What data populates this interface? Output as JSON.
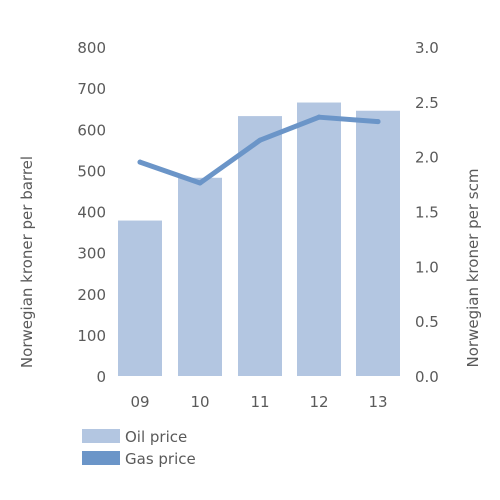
{
  "chart_data": {
    "type": "bar",
    "categories": [
      "09",
      "10",
      "11",
      "12",
      "13"
    ],
    "series": [
      {
        "name": "Oil price",
        "type": "bar",
        "axis": "left",
        "color": "#b3c6e1",
        "values": [
          378,
          482,
          632,
          665,
          645
        ]
      },
      {
        "name": "Gas price",
        "type": "line",
        "axis": "right",
        "color": "#6b95c8",
        "values": [
          1.95,
          1.76,
          2.15,
          2.36,
          2.32
        ]
      }
    ],
    "y_left": {
      "label": "Norwegian kroner per barrel",
      "range": [
        0,
        800
      ],
      "ticks": [
        "0",
        "100",
        "200",
        "300",
        "400",
        "500",
        "600",
        "700",
        "800"
      ]
    },
    "y_right": {
      "label": "Norwegian kroner per scm",
      "range": [
        0,
        3.0
      ],
      "ticks": [
        "0.0",
        "0.5",
        "1.0",
        "1.5",
        "2.0",
        "2.5",
        "3.0"
      ]
    },
    "grid": false,
    "legend_position": "bottom-left"
  }
}
